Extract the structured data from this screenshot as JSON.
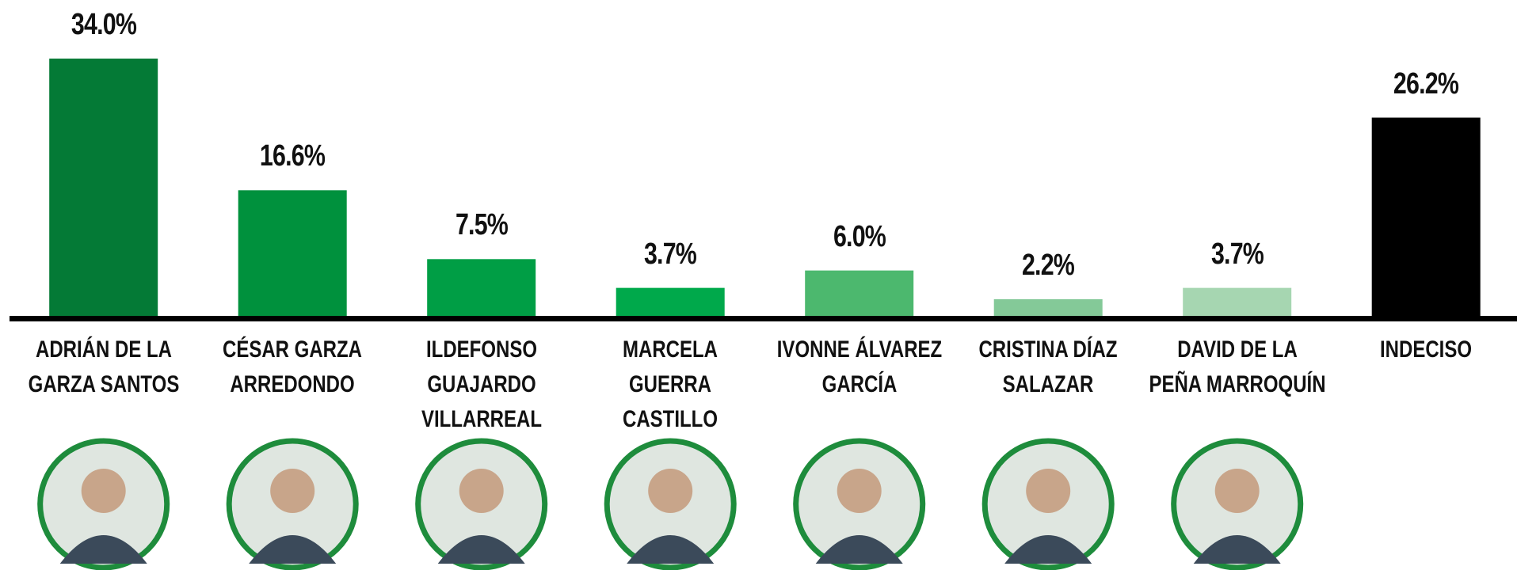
{
  "chart_data": {
    "type": "bar",
    "categories": [
      "ADRIÁN DE LA GARZA SANTOS",
      "CÉSAR GARZA ARREDONDO",
      "ILDEFONSO GUAJARDO VILLARREAL",
      "MARCELA GUERRA CASTILLO",
      "IVONNE ÁLVAREZ GARCÍA",
      "CRISTINA DÍAZ SALAZAR",
      "DAVID DE LA PEÑA MARROQUÍN",
      "INDECISO"
    ],
    "values": [
      34.0,
      16.6,
      7.5,
      3.7,
      6.0,
      2.2,
      3.7,
      26.2
    ],
    "value_labels": [
      "34.0%",
      "16.6%",
      "7.5%",
      "3.7%",
      "6.0%",
      "2.2%",
      "3.7%",
      "26.2%"
    ],
    "colors": [
      "#047a36",
      "#00913d",
      "#009e45",
      "#00a94b",
      "#4cb86e",
      "#84c998",
      "#a6d6b1",
      "#000000"
    ]
  }
}
